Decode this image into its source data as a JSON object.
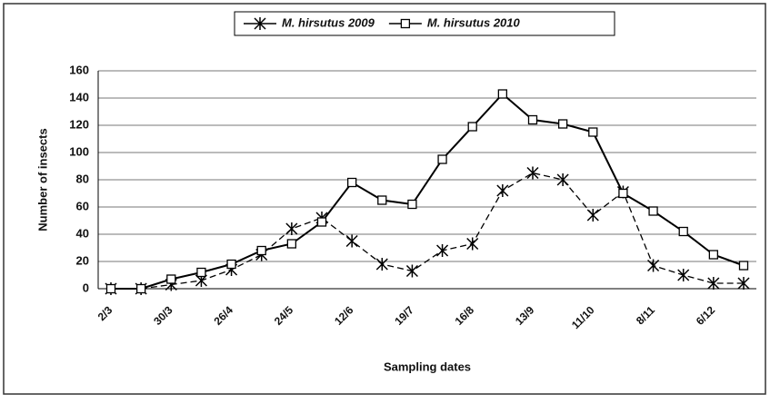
{
  "chart_data": {
    "type": "line",
    "categories": [
      "2/3",
      null,
      "30/3",
      null,
      "26/4",
      null,
      "24/5",
      null,
      "12/6",
      null,
      "19/7",
      null,
      "16/8",
      null,
      "13/9",
      null,
      "11/10",
      null,
      "8/11",
      null,
      "6/12",
      null
    ],
    "series": [
      {
        "name": "M. hirsutus 2009",
        "color": "#000000",
        "marker": "x",
        "values": [
          0,
          0,
          3,
          6,
          14,
          25,
          44,
          52,
          35,
          18,
          13,
          28,
          33,
          72,
          85,
          80,
          54,
          71,
          17,
          10,
          4,
          4
        ]
      },
      {
        "name": "M. hirsutus 2010",
        "color": "#000000",
        "marker": "square",
        "values": [
          0,
          0,
          7,
          12,
          18,
          28,
          33,
          49,
          78,
          65,
          62,
          95,
          119,
          143,
          124,
          121,
          115,
          70,
          57,
          42,
          25,
          17
        ]
      }
    ],
    "ylim": [
      0,
      160
    ],
    "yticks": [
      0,
      20,
      40,
      60,
      80,
      100,
      120,
      140,
      160
    ],
    "y_label": "Number of insects",
    "x_label": "Sampling dates",
    "grid": true,
    "legend": "top"
  }
}
